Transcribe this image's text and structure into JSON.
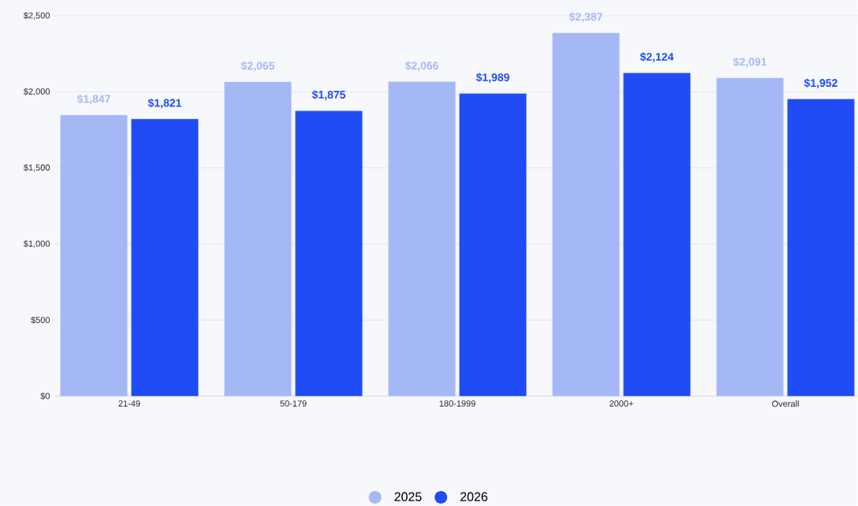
{
  "chart_data": {
    "type": "bar",
    "categories": [
      "21-49",
      "50-179",
      "180-1999",
      "2000+",
      "Overall"
    ],
    "series": [
      {
        "name": "2025",
        "color": "#a5b8f6",
        "values": [
          1847,
          2065,
          2066,
          2387,
          2091
        ],
        "value_labels": [
          "$1,847",
          "$2,065",
          "$2,066",
          "$2,387",
          "$2,091"
        ]
      },
      {
        "name": "2026",
        "color": "#1f4cf4",
        "values": [
          1821,
          1875,
          1989,
          2124,
          1952
        ],
        "value_labels": [
          "$1,821",
          "$1,875",
          "$1,989",
          "$2,124",
          "$1,952"
        ]
      }
    ],
    "ylim": [
      0,
      2500
    ],
    "yticks": [
      {
        "value": 0,
        "label": "$0"
      },
      {
        "value": 500,
        "label": "$500"
      },
      {
        "value": 1000,
        "label": "$1,000"
      },
      {
        "value": 1500,
        "label": "$1,500"
      },
      {
        "value": 2000,
        "label": "$2,000"
      },
      {
        "value": 2500,
        "label": "$2,500"
      }
    ],
    "grid": "y",
    "legend": "bottom"
  }
}
